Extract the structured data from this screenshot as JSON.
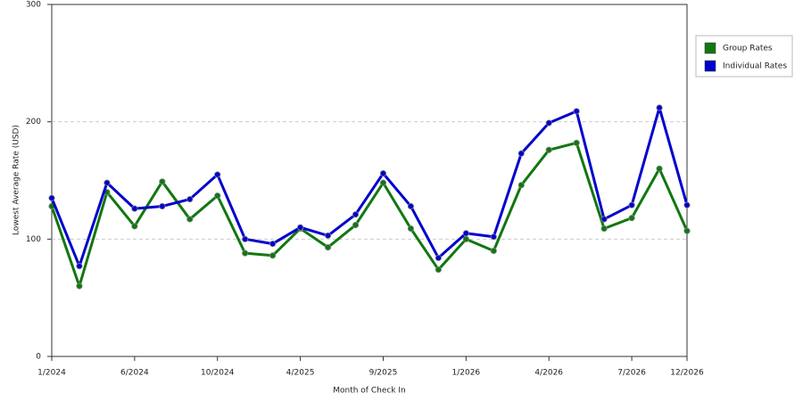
{
  "chart_data": {
    "type": "line",
    "x_label": "Month of Check In",
    "y_label": "Lowest Average Rate (USD)",
    "categories": [
      "1/2024",
      null,
      null,
      "6/2024",
      null,
      null,
      "10/2024",
      null,
      null,
      "4/2025",
      null,
      null,
      "9/2025",
      null,
      null,
      "1/2026",
      null,
      null,
      "4/2026",
      null,
      null,
      "7/2026",
      null,
      "12/2026"
    ],
    "series": [
      {
        "name": "Group Rates",
        "color": "#117711",
        "values": [
          128,
          60,
          140,
          111,
          149,
          117,
          137,
          88,
          86,
          109,
          93,
          112,
          148,
          109,
          74,
          100,
          90,
          146,
          176,
          182,
          109,
          118,
          160,
          107
        ]
      },
      {
        "name": "Individual Rates",
        "color": "#0000cc",
        "values": [
          135,
          77,
          148,
          126,
          128,
          134,
          155,
          100,
          96,
          110,
          103,
          121,
          156,
          128,
          84,
          105,
          102,
          173,
          199,
          209,
          117,
          129,
          212,
          129
        ]
      }
    ],
    "ylim": [
      0,
      300
    ],
    "yticks": [
      0,
      100,
      200,
      300
    ],
    "grid": true,
    "legend": "right"
  }
}
